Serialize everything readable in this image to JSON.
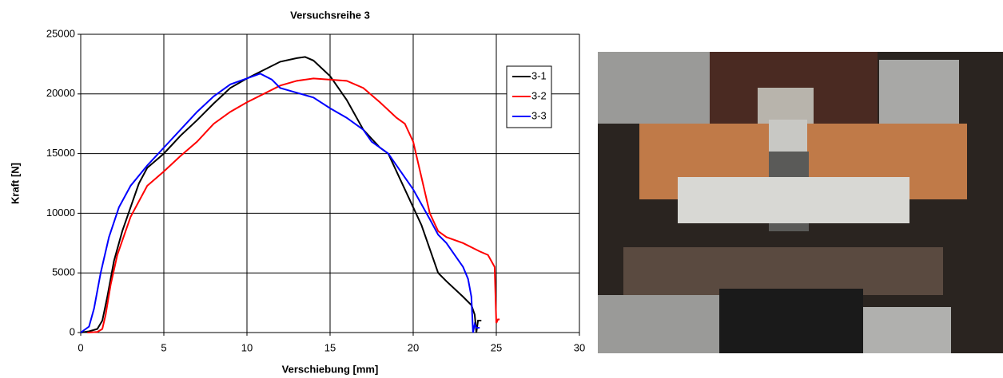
{
  "chart_data": {
    "type": "line",
    "title": "Versuchsreihe 3",
    "x_label": "Verschiebung [mm]",
    "y_label": "Kraft [N]",
    "xlim": [
      0,
      30
    ],
    "xticks": [
      0,
      5,
      10,
      15,
      20,
      25,
      30
    ],
    "ylim": [
      0,
      25000
    ],
    "yticks": [
      0,
      5000,
      10000,
      15000,
      20000,
      25000
    ],
    "grid": true,
    "legend": "right",
    "series": [
      {
        "name": "3-1",
        "color": "#000000",
        "x": [
          0,
          0.5,
          1,
          1.3,
          1.6,
          2,
          2.5,
          3,
          3.5,
          4,
          5,
          6,
          7,
          8,
          9,
          10,
          11,
          12,
          13,
          13.5,
          14,
          15,
          16,
          17,
          18,
          18.5,
          19,
          20,
          20.5,
          21,
          21.5,
          22,
          23,
          23.5,
          23.7,
          23.8,
          23.9,
          24.1
        ],
        "values": [
          0,
          100,
          300,
          1000,
          3000,
          6000,
          8500,
          10500,
          12500,
          13800,
          15000,
          16500,
          17800,
          19200,
          20500,
          21300,
          22000,
          22700,
          23000,
          23100,
          22800,
          21500,
          19500,
          17000,
          15500,
          15000,
          13500,
          10500,
          9000,
          7000,
          5000,
          4300,
          3000,
          2300,
          1500,
          0,
          1000,
          1000
        ]
      },
      {
        "name": "3-2",
        "color": "#ff0000",
        "x": [
          0.4,
          1,
          1.3,
          1.5,
          1.8,
          2.2,
          2.7,
          3,
          3.5,
          4,
          5,
          6,
          7,
          8,
          9,
          10,
          11,
          12,
          13,
          14,
          15,
          16,
          17,
          18,
          19,
          19.5,
          20,
          20.5,
          21,
          21.5,
          22,
          23,
          24,
          24.5,
          24.9,
          25,
          25.1,
          25.2
        ],
        "values": [
          0,
          50,
          300,
          1500,
          4000,
          6500,
          8500,
          9700,
          11000,
          12300,
          13500,
          14800,
          16000,
          17500,
          18500,
          19300,
          20000,
          20700,
          21100,
          21300,
          21200,
          21100,
          20500,
          19300,
          18000,
          17500,
          16000,
          13000,
          10000,
          8500,
          8000,
          7500,
          6800,
          6500,
          5500,
          800,
          1100,
          1100
        ]
      },
      {
        "name": "3-3",
        "color": "#0000ff",
        "x": [
          0,
          0.5,
          0.8,
          1.2,
          1.7,
          2.3,
          3,
          4,
          5,
          6,
          7,
          8,
          9,
          10,
          10.8,
          11.5,
          12,
          13,
          14,
          15,
          16,
          17,
          17.5,
          18,
          18.5,
          19,
          20,
          21,
          21.5,
          22,
          22.5,
          23,
          23.3,
          23.5,
          23.6,
          23.7,
          23.8,
          24
        ],
        "values": [
          0,
          500,
          2000,
          5000,
          8000,
          10500,
          12300,
          14000,
          15500,
          17000,
          18500,
          19800,
          20800,
          21300,
          21700,
          21200,
          20500,
          20100,
          19700,
          18800,
          18000,
          17000,
          16000,
          15500,
          15000,
          14000,
          12000,
          9500,
          8200,
          7500,
          6500,
          5500,
          4500,
          3000,
          0,
          700,
          400,
          400
        ]
      }
    ]
  }
}
